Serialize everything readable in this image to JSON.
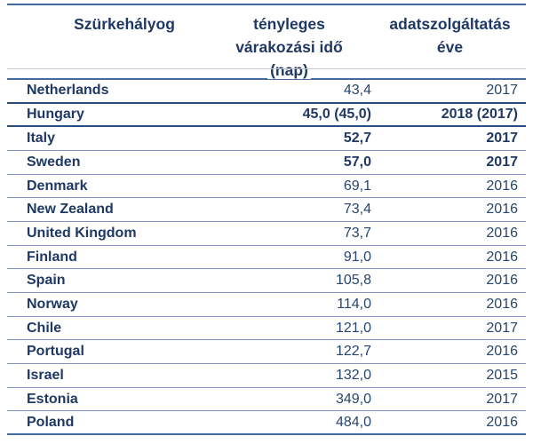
{
  "table": {
    "header": {
      "col1": "Szürkehályog",
      "col2_lines": [
        "tényleges",
        "várakozási idő",
        "(nap)"
      ],
      "col3_lines": [
        "adatszolgáltatás",
        "éve"
      ]
    },
    "rows": [
      {
        "country": "Netherlands",
        "value": "43,4",
        "year": "2017",
        "bold": false
      },
      {
        "country": "Hungary",
        "value": "45,0 (45,0)",
        "year": "2018 (2017)",
        "bold": true
      },
      {
        "country": "Italy",
        "value": "52,7",
        "year": "2017",
        "bold": true
      },
      {
        "country": "Sweden",
        "value": "57,0",
        "year": "2017",
        "bold": true
      },
      {
        "country": "Denmark",
        "value": "69,1",
        "year": "2016",
        "bold": false
      },
      {
        "country": "New Zealand",
        "value": "73,4",
        "year": "2016",
        "bold": false
      },
      {
        "country": "United Kingdom",
        "value": "73,7",
        "year": "2016",
        "bold": false
      },
      {
        "country": "Finland",
        "value": "91,0",
        "year": "2016",
        "bold": false
      },
      {
        "country": "Spain",
        "value": "105,8",
        "year": "2016",
        "bold": false
      },
      {
        "country": "Norway",
        "value": "114,0",
        "year": "2016",
        "bold": false
      },
      {
        "country": "Chile",
        "value": "121,0",
        "year": "2017",
        "bold": false
      },
      {
        "country": "Portugal",
        "value": "122,7",
        "year": "2016",
        "bold": false
      },
      {
        "country": "Israel",
        "value": "132,0",
        "year": "2015",
        "bold": false
      },
      {
        "country": "Estonia",
        "value": "349,0",
        "year": "2017",
        "bold": false
      },
      {
        "country": "Poland",
        "value": "484,0",
        "year": "2016",
        "bold": false
      }
    ],
    "colors": {
      "text_navy": "#1F3864",
      "row_separator": "#7D95C1",
      "emphasis_border": "#2B4D80",
      "frame_border": "#44699E"
    }
  }
}
